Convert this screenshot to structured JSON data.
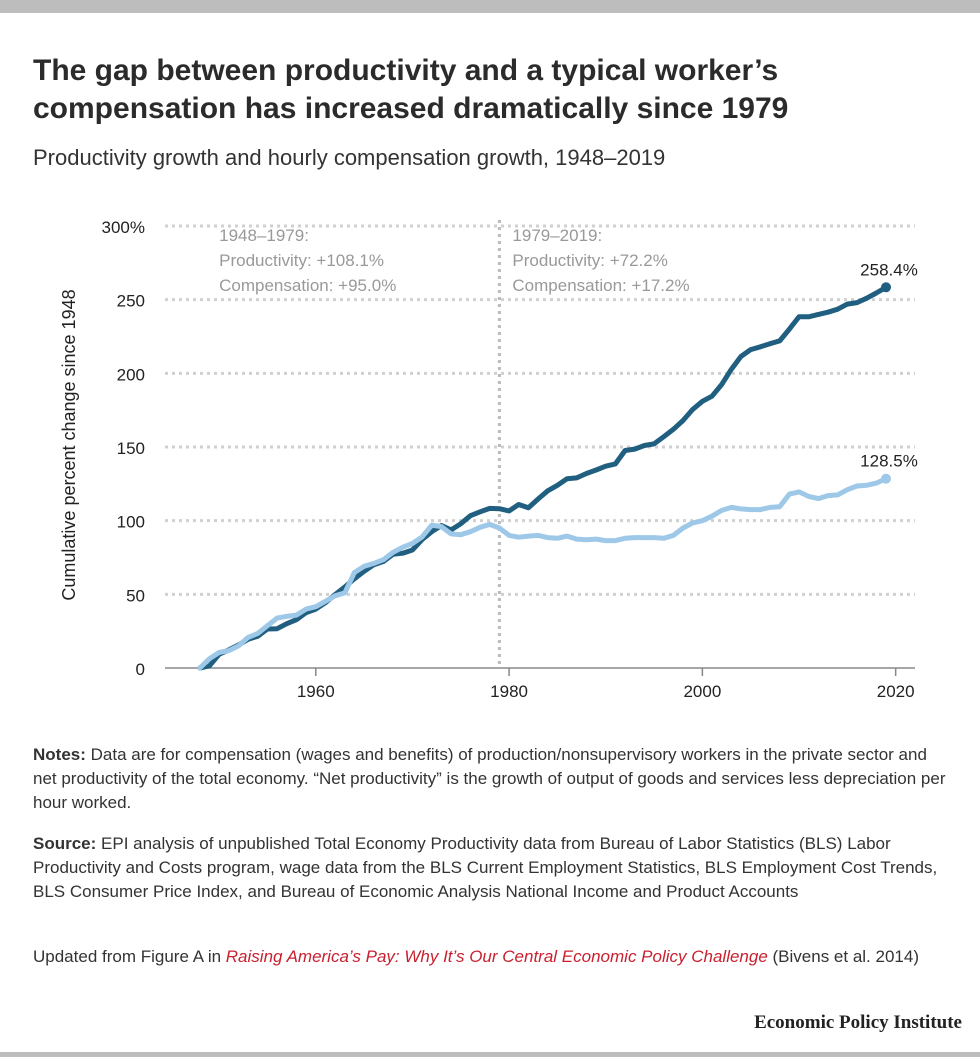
{
  "header": {
    "title": "The gap between productivity and a typical worker’s compensation has increased dramatically since 1979",
    "subtitle": "Productivity growth and hourly compensation growth, 1948–2019"
  },
  "chart_data": {
    "type": "line",
    "title": "The gap between productivity and a typical worker’s compensation has increased dramatically since 1979",
    "xlabel": "",
    "ylabel": "Cumulative percent change since 1948",
    "xlim": [
      1944.4,
      2022
    ],
    "ylim": [
      0,
      300
    ],
    "grid": true,
    "x_ticks": [
      "1960",
      "1980",
      "2000",
      "2020"
    ],
    "x_tick_values": [
      1960,
      1980,
      2000,
      2020
    ],
    "y_ticks": [
      "0",
      "50",
      "100",
      "150",
      "200",
      "250",
      "300%"
    ],
    "y_tick_values": [
      0,
      50,
      100,
      150,
      200,
      250,
      300
    ],
    "divider_year": 1979,
    "x_start": 1948,
    "series": [
      {
        "name": "Productivity",
        "color": "#215f80",
        "end_label": "258.4%",
        "values": [
          0,
          1.5,
          9.3,
          12.3,
          15.6,
          19.5,
          21.6,
          26.5,
          26.7,
          30.1,
          32.8,
          37.6,
          40.0,
          44.3,
          49.8,
          55.0,
          60.6,
          65.6,
          70.1,
          72.3,
          77.2,
          77.9,
          80.1,
          87.2,
          92.5,
          96.7,
          93.7,
          97.9,
          103.4,
          106.0,
          108.3,
          108.1,
          106.6,
          111.0,
          108.7,
          114.7,
          120.3,
          124.0,
          128.5,
          129.0,
          132.0,
          134.4,
          137.0,
          138.5,
          147.6,
          148.6,
          151.0,
          152.1,
          157.0,
          162.0,
          168.0,
          175.5,
          181.0,
          184.5,
          192.4,
          202.8,
          211.5,
          216.1,
          218.0,
          220.1,
          222.0,
          230.0,
          238.4,
          238.4,
          240.0,
          241.5,
          243.5,
          247.0,
          248.0,
          251.0,
          254.5,
          258.4
        ]
      },
      {
        "name": "Compensation",
        "color": "#9dc8e8",
        "end_label": "128.5%",
        "values": [
          0,
          6.3,
          10.5,
          11.8,
          15.0,
          20.8,
          23.5,
          28.7,
          33.9,
          35.1,
          35.9,
          40.0,
          41.6,
          45.3,
          49.0,
          51.0,
          64.8,
          69.0,
          71.0,
          73.5,
          78.5,
          82.0,
          84.5,
          89.0,
          97.0,
          96.0,
          91.0,
          90.5,
          92.5,
          95.5,
          97.5,
          95.0,
          90.0,
          88.8,
          89.5,
          90.0,
          88.5,
          88.0,
          89.5,
          87.5,
          87.0,
          87.5,
          86.5,
          86.5,
          88.0,
          88.5,
          88.5,
          88.5,
          88.0,
          90.0,
          95.0,
          98.5,
          100.0,
          103.0,
          107.0,
          109.0,
          108.0,
          107.5,
          107.5,
          109.0,
          109.5,
          118.0,
          119.5,
          116.5,
          115.0,
          117.0,
          117.5,
          121.0,
          123.5,
          124.0,
          125.5,
          128.5
        ]
      }
    ],
    "annotations": {
      "left": [
        "1948–1979:",
        "Productivity: +108.1%",
        "Compensation: +95.0%"
      ],
      "right": [
        "1979–2019:",
        "Productivity: +72.2%",
        "Compensation: +17.2%"
      ]
    }
  },
  "notes": {
    "notes_label": "Notes:",
    "notes_text": " Data are for compensation (wages and benefits) of production/nonsupervisory workers in the private sector and net productivity of the total economy. “Net productivity” is the growth of output of goods and services less depreciation per hour worked.",
    "source_label": "Source:",
    "source_text": " EPI analysis of unpublished Total Economy Productivity data from Bureau of Labor Statistics (BLS) Labor Productivity and Costs program, wage data from the BLS Current Employment Statistics, BLS Employment Cost Trends, BLS Consumer Price Index, and Bureau of Economic Analysis National Income and Product Accounts",
    "updated_prefix": "Updated from Figure A in ",
    "updated_link": "Raising America’s Pay: Why It’s Our Central Economic Policy Challenge",
    "updated_suffix": " (Bivens et al. 2014)"
  },
  "footer": {
    "org": "Economic Policy Institute"
  }
}
